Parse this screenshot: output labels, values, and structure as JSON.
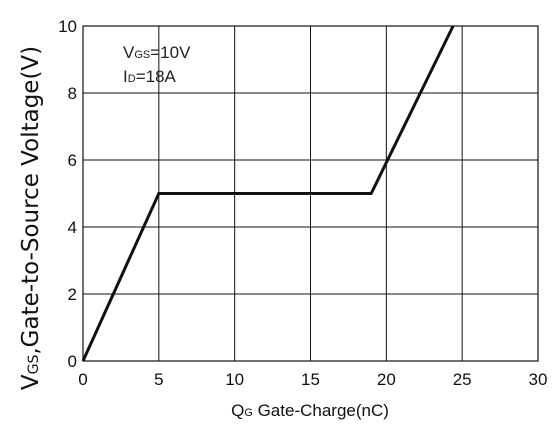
{
  "chart_data": {
    "type": "line",
    "xlabel_sub": "Q",
    "xlabel_subscript": "G",
    "xlabel_rest": " Gate-Charge(nC)",
    "ylabel_sub": "V",
    "ylabel_subscript": "GS",
    "ylabel_rest": ",Gate-to-Source Voltage(V)",
    "xlim": [
      0,
      30
    ],
    "ylim": [
      0,
      10
    ],
    "xticks": [
      0,
      5,
      10,
      15,
      20,
      25,
      30
    ],
    "yticks": [
      0,
      2,
      4,
      6,
      8,
      10
    ],
    "grid": true,
    "annotations": [
      {
        "main": "V",
        "sub": "GS",
        "rest": "=10V"
      },
      {
        "main": "I",
        "sub": "D",
        "rest": "=18A"
      }
    ],
    "series": [
      {
        "x": [
          0,
          5,
          19,
          24.4
        ],
        "y": [
          0,
          5,
          5,
          10
        ]
      }
    ],
    "line_color": "#111111"
  }
}
